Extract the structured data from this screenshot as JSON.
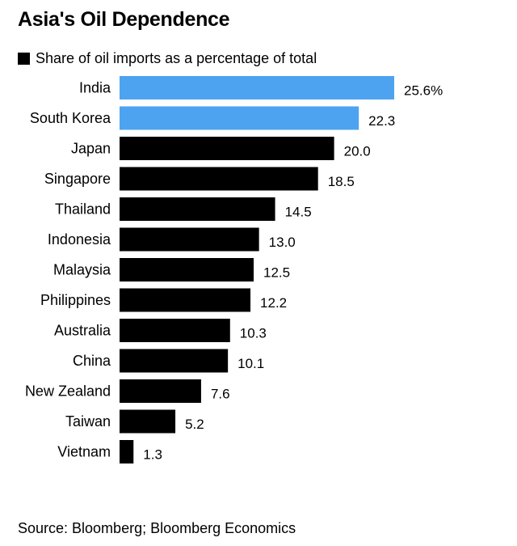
{
  "chart_data": {
    "type": "bar",
    "orientation": "horizontal",
    "title": "Asia's Oil Dependence",
    "legend": {
      "label": "Share of oil imports as a percentage of total",
      "color": "#000000"
    },
    "categories": [
      "India",
      "South Korea",
      "Japan",
      "Singapore",
      "Thailand",
      "Indonesia",
      "Malaysia",
      "Philippines",
      "Australia",
      "China",
      "New Zealand",
      "Taiwan",
      "Vietnam"
    ],
    "values": [
      25.6,
      22.3,
      20.0,
      18.5,
      14.5,
      13.0,
      12.5,
      12.2,
      10.3,
      10.1,
      7.6,
      5.2,
      1.3
    ],
    "value_labels": [
      "25.6%",
      "22.3",
      "20.0",
      "18.5",
      "14.5",
      "13.0",
      "12.5",
      "12.2",
      "10.3",
      "10.1",
      "7.6",
      "5.2",
      "1.3"
    ],
    "highlighted": [
      "India",
      "South Korea"
    ],
    "colors": {
      "highlight": "#4da3f0",
      "default": "#000000"
    },
    "xlim": [
      0,
      25.6
    ],
    "grid": false,
    "source": "Source: Bloomberg; Bloomberg Economics"
  }
}
